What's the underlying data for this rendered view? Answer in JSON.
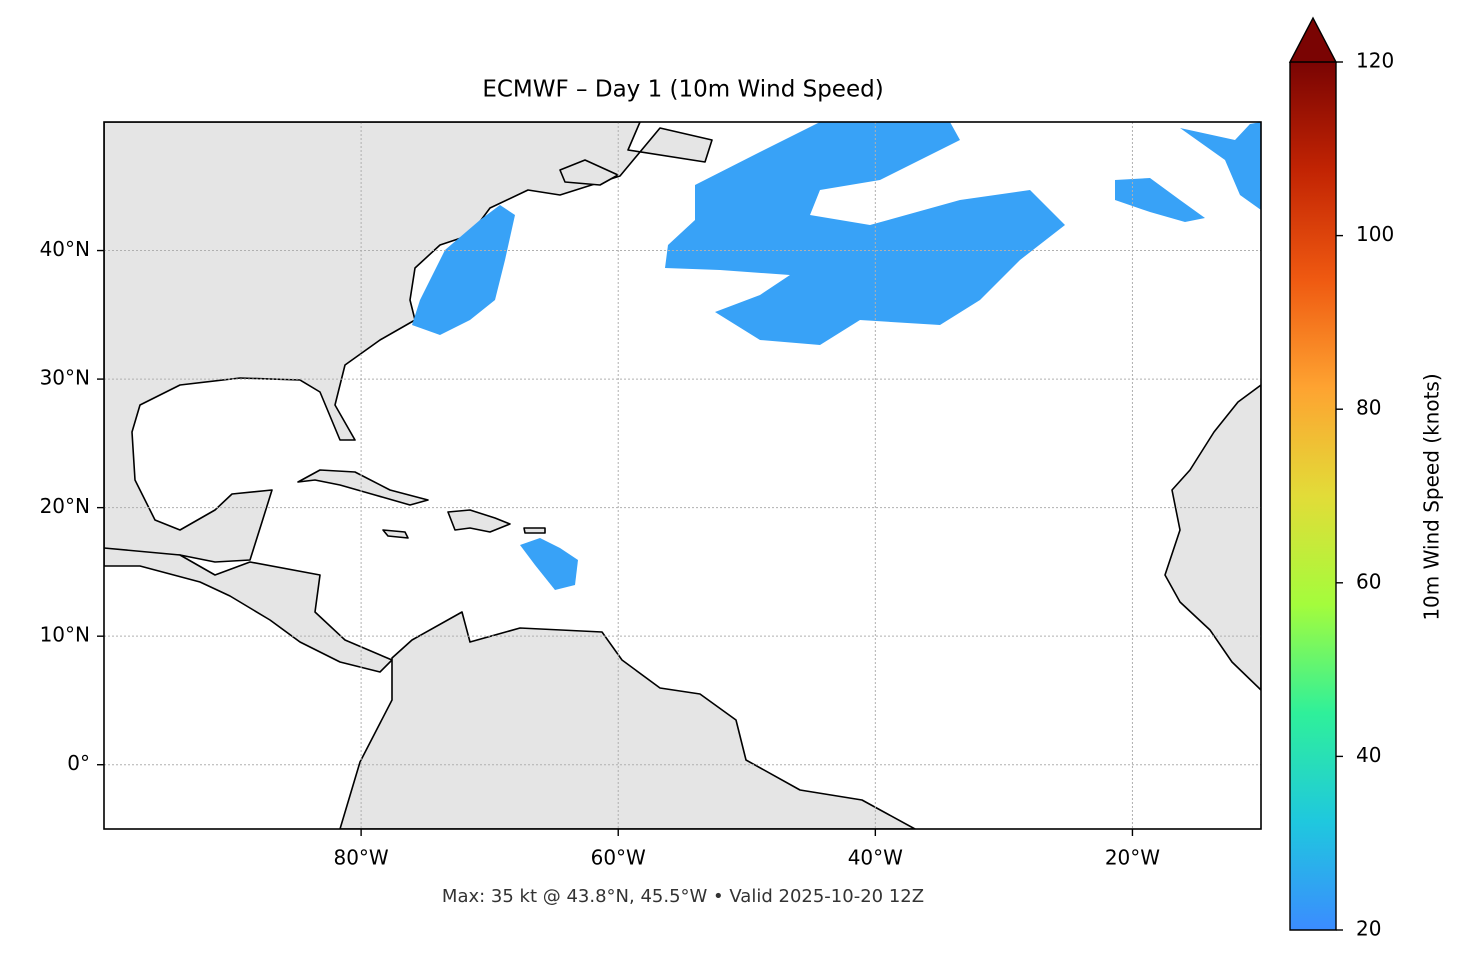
{
  "chart_data": {
    "type": "map",
    "title": "ECMWF – Day 1 (10m Wind Speed)",
    "footer": "Max: 35 kt @ 43.8°N, 45.5°W • Valid 2025-10-20 12Z",
    "xlim": [
      -100,
      -10
    ],
    "ylim": [
      -5,
      50
    ],
    "xticks": [
      {
        "value": -80,
        "label": "80°W"
      },
      {
        "value": -60,
        "label": "60°W"
      },
      {
        "value": -40,
        "label": "40°W"
      },
      {
        "value": -20,
        "label": "20°W"
      }
    ],
    "yticks": [
      {
        "value": 0,
        "label": "0°"
      },
      {
        "value": 10,
        "label": "10°N"
      },
      {
        "value": 20,
        "label": "20°N"
      },
      {
        "value": 30,
        "label": "30°N"
      },
      {
        "value": 40,
        "label": "40°N"
      }
    ],
    "grid": true,
    "colorbar": {
      "label": "10m Wind Speed (knots)",
      "lim": [
        20,
        120
      ],
      "ticks": [
        20,
        40,
        60,
        80,
        100,
        120
      ],
      "colors": [
        "#3b8cff",
        "#1fc8de",
        "#2ff09a",
        "#a4fc3c",
        "#e2dc38",
        "#fea331",
        "#ef5911",
        "#c22403",
        "#7a0403"
      ]
    }
  }
}
